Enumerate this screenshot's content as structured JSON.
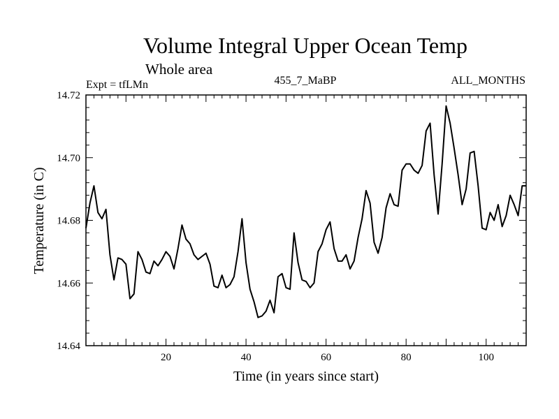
{
  "chart_data": {
    "type": "line",
    "title": "Volume Integral Upper Ocean Temp",
    "subtitle": "Whole area",
    "experiment": "Expt = tfLMn",
    "run": "455_7_MaBP",
    "period": "ALL_MONTHS",
    "xlabel": "Time (in years since start)",
    "ylabel": "Temperature (in C)",
    "xlim": [
      0,
      110
    ],
    "ylim": [
      14.64,
      14.72
    ],
    "xticks_major": [
      20,
      40,
      60,
      80,
      100
    ],
    "xtick_labels": [
      "20",
      "40",
      "60",
      "80",
      "100"
    ],
    "yticks_major": [
      14.64,
      14.66,
      14.68,
      14.7,
      14.72
    ],
    "ytick_labels": [
      "14.64",
      "14.66",
      "14.68",
      "14.70",
      "14.72"
    ],
    "x": [
      0,
      1,
      2,
      3,
      4,
      5,
      6,
      7,
      8,
      9,
      10,
      11,
      12,
      13,
      14,
      15,
      16,
      17,
      18,
      19,
      20,
      21,
      22,
      23,
      24,
      25,
      26,
      27,
      28,
      29,
      30,
      31,
      32,
      33,
      34,
      35,
      36,
      37,
      38,
      39,
      40,
      41,
      42,
      43,
      44,
      45,
      46,
      47,
      48,
      49,
      50,
      51,
      52,
      53,
      54,
      55,
      56,
      57,
      58,
      59,
      60,
      61,
      62,
      63,
      64,
      65,
      66,
      67,
      68,
      69,
      70,
      71,
      72,
      73,
      74,
      75,
      76,
      77,
      78,
      79,
      80,
      81,
      82,
      83,
      84,
      85,
      86,
      87,
      88,
      89,
      90,
      91,
      92,
      93,
      94,
      95,
      96,
      97,
      98,
      99,
      100,
      101,
      102,
      103,
      104,
      105,
      106,
      107,
      108,
      109,
      110
    ],
    "series": [
      {
        "name": "Temperature",
        "values": [
          14.6775,
          14.6855,
          14.691,
          14.6825,
          14.6805,
          14.6835,
          14.669,
          14.661,
          14.668,
          14.6675,
          14.666,
          14.655,
          14.6565,
          14.67,
          14.6675,
          14.6635,
          14.663,
          14.667,
          14.6655,
          14.6675,
          14.67,
          14.6685,
          14.6645,
          14.671,
          14.6785,
          14.674,
          14.6725,
          14.669,
          14.6675,
          14.6685,
          14.6695,
          14.666,
          14.659,
          14.6585,
          14.6625,
          14.6585,
          14.6595,
          14.662,
          14.67,
          14.6805,
          14.6665,
          14.658,
          14.654,
          14.649,
          14.6495,
          14.651,
          14.6545,
          14.6505,
          14.662,
          14.663,
          14.6585,
          14.658,
          14.676,
          14.6665,
          14.661,
          14.6605,
          14.6585,
          14.66,
          14.67,
          14.6725,
          14.677,
          14.6795,
          14.671,
          14.667,
          14.667,
          14.669,
          14.6645,
          14.667,
          14.6745,
          14.6805,
          14.6895,
          14.6855,
          14.673,
          14.6695,
          14.6745,
          14.684,
          14.6885,
          14.685,
          14.6845,
          14.696,
          14.698,
          14.698,
          14.696,
          14.695,
          14.6975,
          14.7085,
          14.711,
          14.6945,
          14.682,
          14.698,
          14.7165,
          14.711,
          14.703,
          14.6945,
          14.685,
          14.69,
          14.7015,
          14.702,
          14.691,
          14.6775,
          14.677,
          14.6825,
          14.68,
          14.685,
          14.678,
          14.6815,
          14.688,
          14.685,
          14.6815,
          14.691,
          14.691
        ]
      }
    ]
  }
}
